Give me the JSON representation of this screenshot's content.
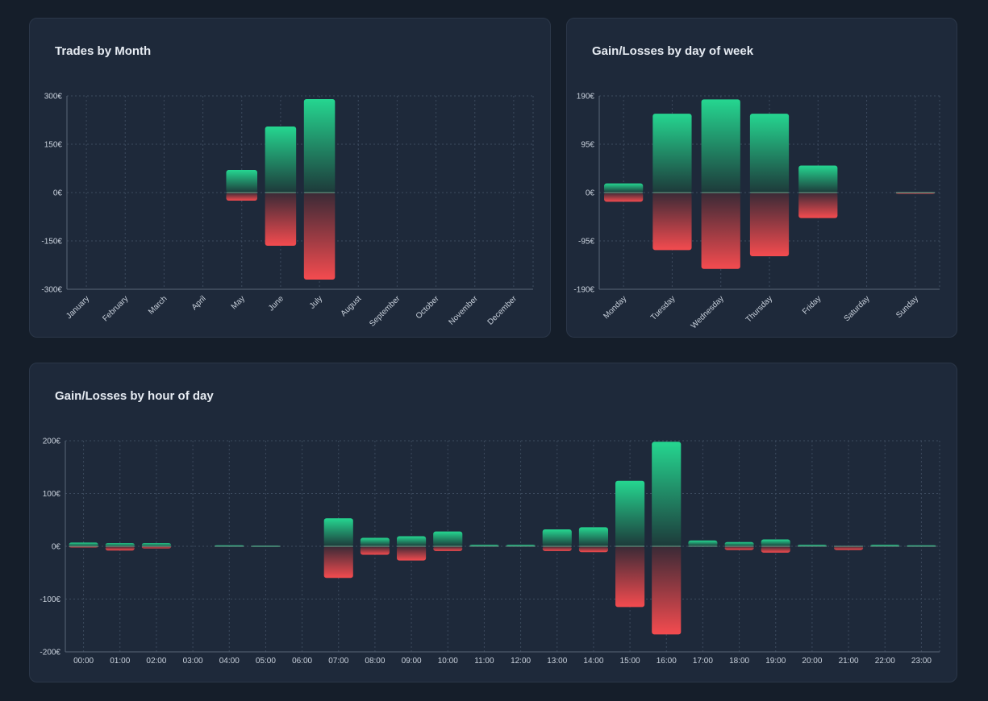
{
  "colors": {
    "gain_top": "#25d690",
    "gain_bottom": "#1d3a3a",
    "loss_top": "#3a2a36",
    "loss_bottom": "#f44b4f"
  },
  "cards": {
    "month_title": "Trades by Month",
    "dow_title": "Gain/Losses by day of week",
    "hour_title": "Gain/Losses by hour of day"
  },
  "chart_data": [
    {
      "id": "month",
      "type": "bar",
      "title": "Trades by Month",
      "categories": [
        "January",
        "February",
        "March",
        "April",
        "May",
        "June",
        "July",
        "August",
        "September",
        "October",
        "November",
        "December"
      ],
      "series": [
        {
          "values": [
            0,
            0,
            0,
            0,
            70,
            205,
            290,
            0,
            0,
            0,
            0,
            0
          ]
        },
        {
          "values": [
            0,
            0,
            0,
            0,
            -25,
            -165,
            -270,
            0,
            0,
            0,
            0,
            0
          ]
        }
      ],
      "yticks": [
        "300€",
        "150€",
        "0€",
        "-150€",
        "-300€"
      ],
      "ylim": [
        -300,
        300
      ],
      "grid": true
    },
    {
      "id": "dow",
      "type": "bar",
      "title": "Gain/Losses by day of week",
      "categories": [
        "Monday",
        "Tuesday",
        "Wednesday",
        "Thursday",
        "Friday",
        "Saturday",
        "Sunday"
      ],
      "series": [
        {
          "values": [
            18,
            155,
            183,
            155,
            53,
            0,
            0.5
          ]
        },
        {
          "values": [
            -18,
            -113,
            -150,
            -125,
            -50,
            0,
            -0.5
          ]
        }
      ],
      "yticks": [
        "190€",
        "95€",
        "0€",
        "-95€",
        "-190€"
      ],
      "ylim": [
        -190,
        190
      ],
      "grid": true
    },
    {
      "id": "hour",
      "type": "bar",
      "title": "Gain/Losses by hour of day",
      "categories": [
        "00:00",
        "01:00",
        "02:00",
        "03:00",
        "04:00",
        "05:00",
        "06:00",
        "07:00",
        "08:00",
        "09:00",
        "10:00",
        "11:00",
        "12:00",
        "13:00",
        "14:00",
        "15:00",
        "16:00",
        "17:00",
        "18:00",
        "19:00",
        "20:00",
        "21:00",
        "22:00",
        "23:00"
      ],
      "series": [
        {
          "values": [
            7,
            6,
            6,
            0,
            2,
            1,
            0,
            53,
            16,
            19,
            28,
            3,
            3,
            32,
            36,
            124,
            198,
            11,
            8,
            13,
            3,
            0,
            3,
            2
          ]
        },
        {
          "values": [
            -2,
            -8,
            -4,
            0,
            0,
            0,
            0,
            -60,
            -16,
            -27,
            -9,
            0,
            0,
            -9,
            -11,
            -115,
            -167,
            0,
            -7,
            -12,
            0,
            -7,
            0,
            0
          ]
        }
      ],
      "yticks": [
        "200€",
        "100€",
        "0€",
        "-100€",
        "-200€"
      ],
      "ylim": [
        -200,
        200
      ],
      "grid": true
    }
  ]
}
